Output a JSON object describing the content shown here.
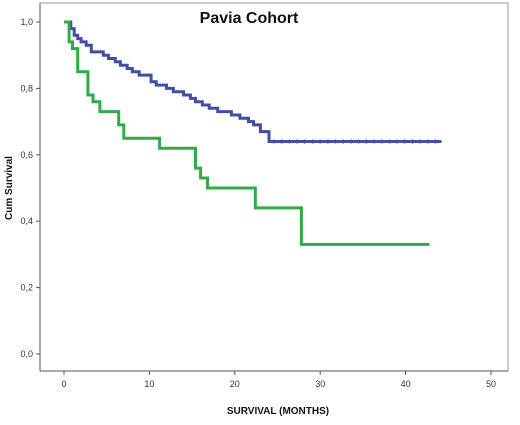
{
  "chart_data": {
    "type": "line",
    "step": true,
    "title": "Pavia Cohort",
    "xlabel": "SURVIVAL (MONTHS)",
    "ylabel": "Cum Survival",
    "xlim": [
      0,
      50
    ],
    "ylim": [
      0.0,
      1.0
    ],
    "xticks": [
      "0",
      "10",
      "20",
      "30",
      "40",
      "50"
    ],
    "yticks": [
      "0,0",
      "0,2",
      "0,4",
      "0,6",
      "0,8",
      "1,0"
    ],
    "grid": false,
    "legend": "none",
    "series": [
      {
        "color": "#3f4fa6",
        "censor_marks": true,
        "x": [
          0,
          0.8,
          1.2,
          1.6,
          2.0,
          2.6,
          3.2,
          4.6,
          5.2,
          6.0,
          6.6,
          7.4,
          8.0,
          8.8,
          10.2,
          10.8,
          12.0,
          12.8,
          14.0,
          14.8,
          15.4,
          16.2,
          17.0,
          18.0,
          19.6,
          20.6,
          21.6,
          22.2,
          23.0,
          24.0,
          44.2
        ],
        "y": [
          1.0,
          0.98,
          0.96,
          0.95,
          0.94,
          0.93,
          0.91,
          0.9,
          0.89,
          0.88,
          0.87,
          0.86,
          0.85,
          0.84,
          0.82,
          0.81,
          0.8,
          0.79,
          0.78,
          0.77,
          0.76,
          0.75,
          0.74,
          0.73,
          0.72,
          0.71,
          0.7,
          0.69,
          0.67,
          0.64,
          0.64
        ]
      },
      {
        "color": "#2fab47",
        "censor_marks": false,
        "x": [
          0,
          0.6,
          1.0,
          1.6,
          2.8,
          3.4,
          4.2,
          6.4,
          7.0,
          11.2,
          15.4,
          16.0,
          16.8,
          22.4,
          27.8,
          42.8
        ],
        "y": [
          1.0,
          0.94,
          0.92,
          0.85,
          0.78,
          0.76,
          0.73,
          0.69,
          0.65,
          0.62,
          0.56,
          0.53,
          0.5,
          0.44,
          0.33,
          0.33
        ]
      }
    ]
  }
}
